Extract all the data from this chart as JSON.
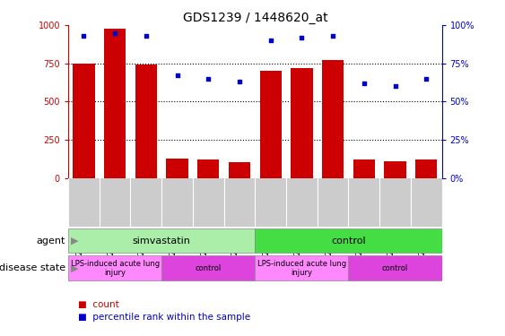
{
  "title": "GDS1239 / 1448620_at",
  "samples": [
    "GSM29715",
    "GSM29716",
    "GSM29717",
    "GSM29712",
    "GSM29713",
    "GSM29714",
    "GSM29709",
    "GSM29710",
    "GSM29711",
    "GSM29706",
    "GSM29707",
    "GSM29708"
  ],
  "count_values": [
    750,
    980,
    740,
    130,
    120,
    105,
    700,
    720,
    770,
    120,
    110,
    120
  ],
  "percentile_values": [
    93,
    95,
    93,
    67,
    65,
    63,
    90,
    92,
    93,
    62,
    60,
    65
  ],
  "bar_color": "#cc0000",
  "dot_color": "#0000cc",
  "ylim_left": [
    0,
    1000
  ],
  "ylim_right": [
    0,
    100
  ],
  "yticks_left": [
    0,
    250,
    500,
    750,
    1000
  ],
  "yticks_right": [
    0,
    25,
    50,
    75,
    100
  ],
  "ytick_labels_left": [
    "0",
    "250",
    "500",
    "750",
    "1000"
  ],
  "ytick_labels_right": [
    "0%",
    "25%",
    "50%",
    "75%",
    "100%"
  ],
  "agent_groups": [
    {
      "label": "simvastatin",
      "start": 0,
      "end": 6,
      "color": "#aaeeaa"
    },
    {
      "label": "control",
      "start": 6,
      "end": 12,
      "color": "#44dd44"
    }
  ],
  "disease_groups": [
    {
      "label": "LPS-induced acute lung\ninjury",
      "start": 0,
      "end": 3,
      "color": "#ff88ff"
    },
    {
      "label": "control",
      "start": 3,
      "end": 6,
      "color": "#dd44dd"
    },
    {
      "label": "LPS-induced acute lung\ninjury",
      "start": 6,
      "end": 9,
      "color": "#ff88ff"
    },
    {
      "label": "control",
      "start": 9,
      "end": 12,
      "color": "#dd44dd"
    }
  ],
  "sample_bg_color": "#cccccc",
  "left_axis_color": "#cc0000",
  "right_axis_color": "#0000cc",
  "grid_color": "#000000",
  "background_color": "#ffffff",
  "legend_count_label": "count",
  "legend_pct_label": "percentile rank within the sample",
  "agent_label": "agent",
  "disease_label": "disease state"
}
